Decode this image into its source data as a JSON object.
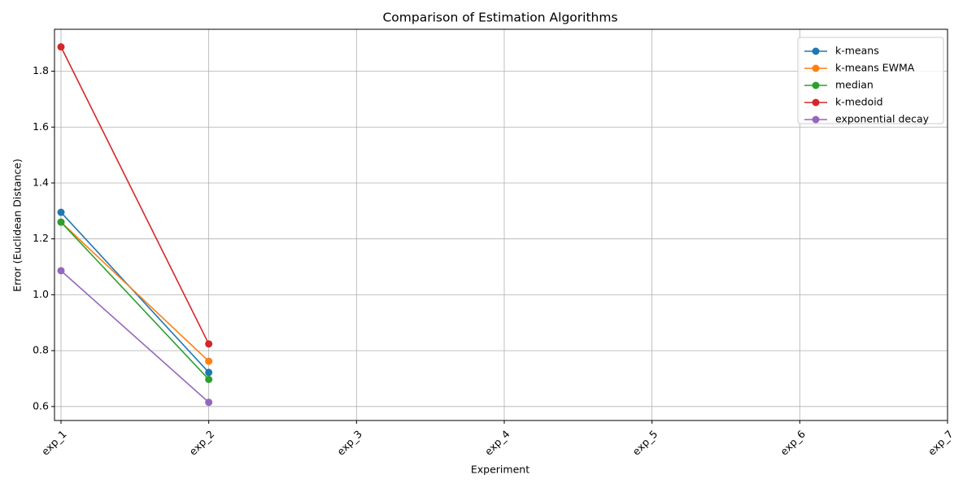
{
  "chart_data": {
    "type": "line",
    "title": "Comparison of Estimation Algorithms",
    "x_label": "Experiment",
    "y_label": "Error (Euclidean Distance)",
    "categories": [
      "exp_1",
      "exp_2",
      "exp_3",
      "exp_4",
      "exp_5",
      "exp_6",
      "exp_7"
    ],
    "series": [
      {
        "name": "k-means",
        "color": "#1f77b4",
        "values": [
          1.295,
          0.722,
          null,
          null,
          null,
          null,
          null
        ]
      },
      {
        "name": "k-means EWMA",
        "color": "#ff7f0e",
        "values": [
          1.26,
          0.762,
          null,
          null,
          null,
          null,
          null
        ]
      },
      {
        "name": "median",
        "color": "#2ca02c",
        "values": [
          1.26,
          0.697,
          null,
          null,
          null,
          null,
          null
        ]
      },
      {
        "name": "k-medoid",
        "color": "#d62728",
        "values": [
          1.887,
          0.824,
          null,
          null,
          null,
          null,
          null
        ]
      },
      {
        "name": "exponential decay",
        "color": "#9467bd",
        "values": [
          1.086,
          0.615,
          null,
          null,
          null,
          null,
          null
        ]
      }
    ],
    "ylim": [
      0.55,
      1.95
    ],
    "yticks": [
      0.6,
      0.8,
      {
        "value": 1,
        "label": "1.0"
      },
      1.2,
      1.4,
      1.6,
      1.8
    ],
    "grid": true,
    "legend": "upper right"
  }
}
